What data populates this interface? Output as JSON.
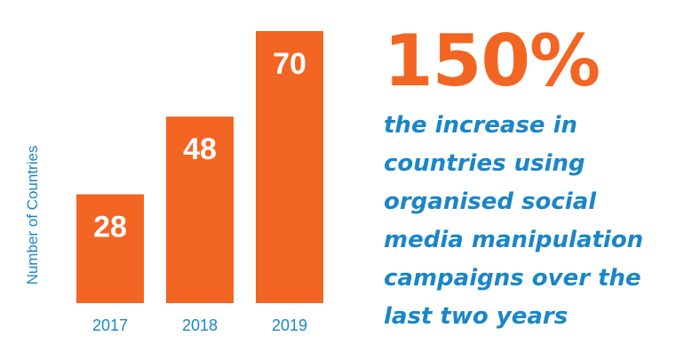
{
  "chart_data": {
    "type": "bar",
    "categories": [
      "2017",
      "2018",
      "2019"
    ],
    "values": [
      28,
      48,
      70
    ],
    "ylabel": "Number of Countries",
    "xlabel": "",
    "ylim": [
      0,
      70
    ],
    "data_labels": true,
    "grid": false,
    "colors": {
      "bar": "#f26522",
      "bar_label": "#ffffff",
      "axis_text": "#1a86c8"
    }
  },
  "stat": {
    "headline": "150%",
    "caption_lines": [
      "the increase in",
      "countries using",
      "organised social",
      "media manipulation",
      "campaigns over the",
      "last two years"
    ],
    "colors": {
      "headline": "#f26522",
      "caption": "#1a86c8"
    }
  }
}
